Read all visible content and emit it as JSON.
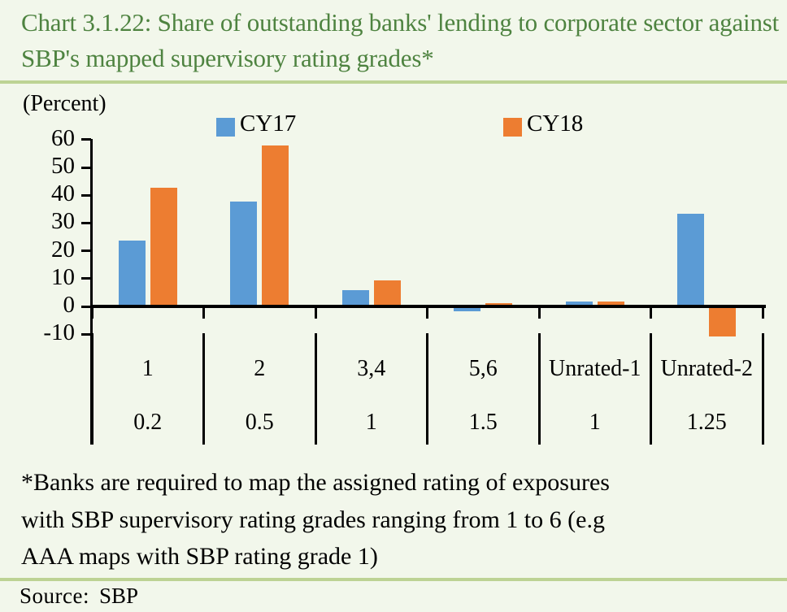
{
  "title": "Chart 3.1.22: Share of outstanding banks' lending to corporate sector against SBP's mapped supervisory rating grades*",
  "percent_label": "(Percent)",
  "legend": [
    {
      "label": "CY17",
      "color": "#5b9bd5"
    },
    {
      "label": "CY18",
      "color": "#ed7d31"
    }
  ],
  "footnote_lines": [
    "*Banks are required to map the assigned rating of exposures",
    "with SBP supervisory rating grades ranging from 1 to 6 (e.g",
    "AAA maps with SBP rating grade 1)"
  ],
  "source": {
    "label": "Source:",
    "value": "SBP"
  },
  "colors": {
    "background": "#f2f7eb",
    "title_green": "#4e8340",
    "rule_green": "#bdd394",
    "axis_black": "#000000",
    "cy17_blue": "#5b9bd5",
    "cy18_orange": "#ed7d31"
  },
  "chart_data": {
    "type": "bar",
    "title": "Share of outstanding banks' lending to corporate sector against SBP's mapped supervisory rating grades",
    "ylabel": "(Percent)",
    "categories": [
      "1",
      "2",
      "3,4",
      "5,6",
      "Unrated-1",
      "Unrated-2"
    ],
    "category_sublabels": [
      "0.2",
      "0.5",
      "1",
      "1.5",
      "1",
      "1.25"
    ],
    "series": [
      {
        "name": "CY17",
        "color": "#5b9bd5",
        "values": [
          23.8,
          37.6,
          5.8,
          -1.2,
          1.9,
          33.2
        ]
      },
      {
        "name": "CY18",
        "color": "#ed7d31",
        "values": [
          42.8,
          58.0,
          9.4,
          1.1,
          1.9,
          -10.3
        ]
      }
    ],
    "ylim": [
      -10,
      60
    ],
    "yticks": [
      60,
      50,
      40,
      30,
      20,
      10,
      0,
      -10
    ],
    "grid": false,
    "legend_position": "top"
  }
}
